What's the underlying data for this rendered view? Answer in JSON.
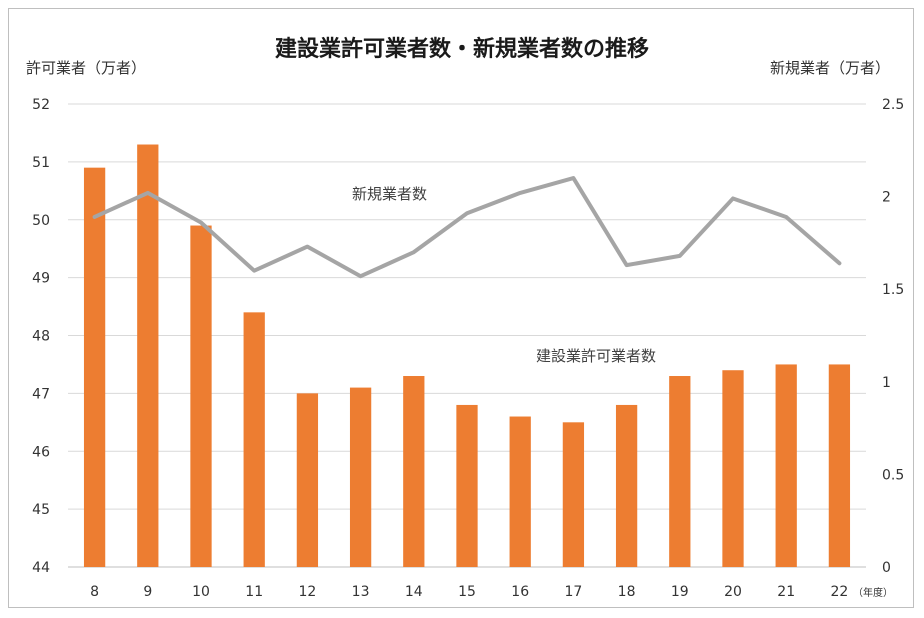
{
  "chart_data": {
    "type": "bar+line",
    "title": "建設業許可業者数・新規業者数の推移",
    "left_axis_title": "許可業者（万者）",
    "right_axis_title": "新規業者（万者）",
    "x_unit_label": "（年度）",
    "categories": [
      "8",
      "9",
      "10",
      "11",
      "12",
      "13",
      "14",
      "15",
      "16",
      "17",
      "18",
      "19",
      "20",
      "21",
      "22"
    ],
    "left_ylim": [
      44,
      52
    ],
    "left_ticks": [
      "44",
      "45",
      "46",
      "47",
      "48",
      "49",
      "50",
      "51",
      "52"
    ],
    "right_ylim": [
      0,
      2.5
    ],
    "right_ticks": [
      "0",
      "0.5",
      "1",
      "1.5",
      "2",
      "2.5"
    ],
    "grid": true,
    "series": [
      {
        "name": "建設業許可業者数",
        "type": "bar",
        "axis": "left",
        "color": "#ED7D31",
        "values": [
          50.9,
          51.3,
          49.9,
          48.4,
          47.0,
          47.1,
          47.3,
          46.8,
          46.6,
          46.5,
          46.8,
          47.3,
          47.4,
          47.5,
          47.5
        ]
      },
      {
        "name": "新規業者数",
        "type": "line",
        "axis": "right",
        "color": "#A5A5A5",
        "values": [
          1.89,
          2.02,
          1.86,
          1.6,
          1.73,
          1.57,
          1.7,
          1.91,
          2.02,
          2.1,
          1.63,
          1.68,
          1.99,
          1.89,
          1.64
        ]
      }
    ]
  }
}
